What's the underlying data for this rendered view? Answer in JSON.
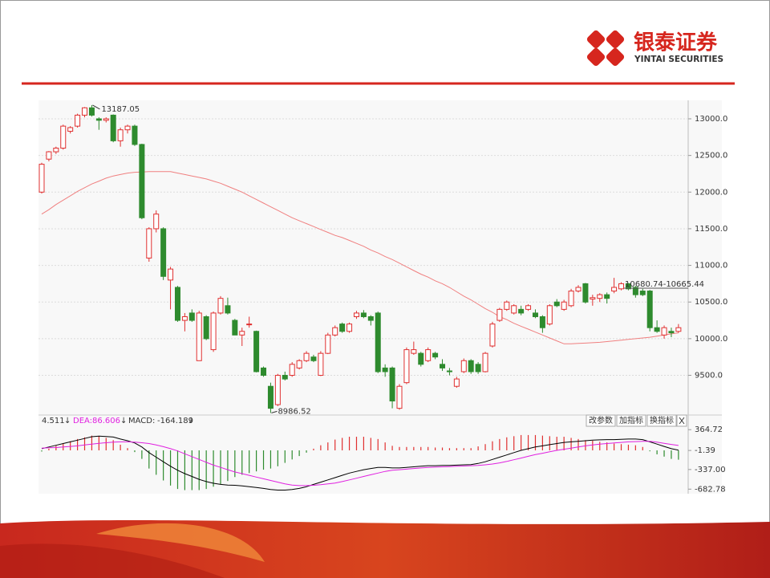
{
  "logo": {
    "name": "银泰证券",
    "subtitle": "YINTAI SECURITIES"
  },
  "toolbar": {
    "buttons": [
      "改参数",
      "加指标",
      "换指标"
    ]
  },
  "chart_data": [
    {
      "type": "candlestick",
      "color_up": "#e03030",
      "color_down": "#2e8b2e",
      "open": [
        12000,
        12450,
        12550,
        12600,
        12830,
        12900,
        13050,
        13150,
        13000,
        12980,
        13050,
        12700,
        12850,
        12900,
        12650,
        11100,
        11500,
        11500,
        10800,
        10700,
        10250,
        10350,
        9700,
        10300,
        9850,
        10350,
        10450,
        10250,
        10050,
        10190,
        10100,
        9600,
        9350,
        9100,
        9500,
        9500,
        9600,
        9700,
        9750,
        9500,
        9800,
        10050,
        10200,
        10100,
        10300,
        10350,
        10300,
        10350,
        9600,
        9600,
        9050,
        9400,
        9800,
        9800,
        9700,
        9800,
        9650,
        9560,
        9350,
        9550,
        9700,
        9650,
        9550,
        9900,
        10250,
        10400,
        10350,
        10400,
        10400,
        10350,
        10300,
        10200,
        10500,
        10400,
        10450,
        10650,
        10750,
        10540,
        10550,
        10600,
        10650,
        10680,
        10750,
        10700,
        10650,
        10650,
        10150,
        10050,
        10100,
        10100
      ],
      "high": [
        12400,
        12560,
        12620,
        12920,
        12900,
        13070,
        13160,
        13187.05,
        13020,
        13020,
        13060,
        12880,
        12920,
        12920,
        12660,
        11520,
        11750,
        11520,
        10980,
        10720,
        10350,
        10400,
        10380,
        10320,
        10370,
        10580,
        10560,
        10270,
        10150,
        10300,
        10110,
        9620,
        9400,
        9520,
        9550,
        9680,
        9720,
        9830,
        9780,
        9830,
        10080,
        10180,
        10220,
        10220,
        10380,
        10390,
        10320,
        10370,
        9650,
        9620,
        9380,
        9880,
        9960,
        9820,
        9880,
        9820,
        9720,
        9600,
        9480,
        9730,
        9720,
        9680,
        9820,
        10230,
        10420,
        10520,
        10470,
        10450,
        10470,
        10400,
        10320,
        10470,
        10540,
        10530,
        10680,
        10730,
        10760,
        10600,
        10620,
        10630,
        10830,
        10770,
        10760,
        10720,
        10680,
        10665,
        10250,
        10180,
        10150,
        10200
      ],
      "low": [
        11980,
        12420,
        12520,
        12580,
        12800,
        12880,
        13020,
        13030,
        12850,
        12950,
        12680,
        12620,
        12800,
        12630,
        11630,
        11050,
        11450,
        10800,
        10400,
        10230,
        10100,
        10230,
        9700,
        9980,
        9820,
        10330,
        10330,
        10050,
        9900,
        10150,
        9540,
        9480,
        8986.52,
        9080,
        9430,
        9480,
        9580,
        9680,
        9680,
        9490,
        9790,
        10030,
        10080,
        10080,
        10270,
        10280,
        10180,
        9530,
        9480,
        9050,
        9030,
        9380,
        9780,
        9620,
        9680,
        9720,
        9560,
        9500,
        9330,
        9530,
        9520,
        9520,
        9540,
        9880,
        10230,
        10380,
        10330,
        10320,
        10380,
        10280,
        10080,
        10180,
        10430,
        10380,
        10430,
        10630,
        10480,
        10450,
        10500,
        10480,
        10620,
        10660,
        10660,
        10560,
        10580,
        10100,
        10080,
        10000,
        10020,
        10080
      ],
      "close": [
        12380,
        12550,
        12600,
        12900,
        12880,
        13050,
        13150,
        13050,
        12980,
        13000,
        12700,
        12850,
        12900,
        12650,
        11650,
        11500,
        11700,
        10850,
        10950,
        10250,
        10300,
        10250,
        10350,
        10000,
        10350,
        10550,
        10350,
        10050,
        10100,
        10200,
        9550,
        9500,
        9050,
        9500,
        9450,
        9650,
        9700,
        9800,
        9700,
        9800,
        10050,
        10150,
        10100,
        10200,
        10350,
        10300,
        10250,
        9550,
        9550,
        9150,
        9350,
        9850,
        9850,
        9650,
        9850,
        9750,
        9600,
        9550,
        9450,
        9700,
        9550,
        9550,
        9800,
        10200,
        10400,
        10500,
        10450,
        10350,
        10450,
        10300,
        10150,
        10450,
        10450,
        10500,
        10650,
        10700,
        10500,
        10560,
        10600,
        10550,
        10700,
        10750,
        10680,
        10600,
        10600,
        10150,
        10100,
        10150,
        10080,
        10150
      ],
      "lines": [
        {
          "color": "#f08080",
          "values": [
            11700,
            11760,
            11830,
            11890,
            11950,
            12010,
            12060,
            12110,
            12150,
            12190,
            12220,
            12240,
            12260,
            12270,
            12275,
            12280,
            12280,
            12280,
            12280,
            12260,
            12240,
            12220,
            12200,
            12180,
            12150,
            12120,
            12080,
            12040,
            12000,
            11950,
            11900,
            11850,
            11800,
            11750,
            11700,
            11650,
            11610,
            11570,
            11530,
            11490,
            11450,
            11410,
            11380,
            11340,
            11300,
            11260,
            11210,
            11170,
            11120,
            11080,
            11030,
            10980,
            10930,
            10880,
            10840,
            10790,
            10750,
            10700,
            10640,
            10580,
            10530,
            10470,
            10410,
            10360,
            10300,
            10260,
            10210,
            10170,
            10130,
            10090,
            10050,
            10010,
            9970,
            9930,
            9930,
            9935,
            9940,
            9945,
            9950,
            9960,
            9970,
            9980,
            9990,
            10000,
            10010,
            10020,
            10035,
            10050,
            10065,
            10080
          ]
        }
      ],
      "ylim": [
        8980,
        13230
      ],
      "yticks": [
        {
          "value": 9500,
          "label": "9500.0"
        },
        {
          "value": 10000,
          "label": "10000.0"
        },
        {
          "value": 10500,
          "label": "10500.0"
        },
        {
          "value": 11000,
          "label": "11000.0"
        },
        {
          "value": 11500,
          "label": "11500.0"
        },
        {
          "value": 12000,
          "label": "12000.0"
        },
        {
          "value": 12500,
          "label": "12500.0"
        },
        {
          "value": 13000,
          "label": "13000.0"
        }
      ],
      "grid": true,
      "annotations": [
        "10680.74-10665.44"
      ]
    },
    {
      "type": "macd",
      "series": [
        {
          "type": "line",
          "color": "#000000",
          "values": [
            30,
            60,
            90,
            120,
            150,
            180,
            210,
            240,
            250,
            245,
            235,
            200,
            170,
            130,
            60,
            -40,
            -120,
            -200,
            -280,
            -350,
            -410,
            -460,
            -510,
            -550,
            -580,
            -600,
            -610,
            -615,
            -625,
            -640,
            -655,
            -670,
            -690,
            -700,
            -700,
            -690,
            -670,
            -640,
            -600,
            -560,
            -520,
            -480,
            -440,
            -400,
            -370,
            -340,
            -320,
            -300,
            -300,
            -310,
            -310,
            -300,
            -290,
            -280,
            -270,
            -270,
            -265,
            -265,
            -260,
            -255,
            -250,
            -230,
            -200,
            -160,
            -120,
            -80,
            -40,
            0,
            30,
            60,
            80,
            100,
            120,
            140,
            150,
            160,
            170,
            180,
            185,
            190,
            190,
            195,
            200,
            200,
            190,
            150,
            110,
            70,
            30,
            4.511
          ]
        },
        {
          "type": "line",
          "name": "DEA:",
          "color": "#e020e0",
          "values": [
            40,
            45,
            50,
            60,
            70,
            80,
            95,
            110,
            125,
            135,
            145,
            150,
            150,
            145,
            135,
            120,
            95,
            65,
            30,
            -10,
            -60,
            -110,
            -160,
            -210,
            -260,
            -300,
            -340,
            -380,
            -410,
            -440,
            -470,
            -500,
            -530,
            -560,
            -590,
            -610,
            -620,
            -620,
            -615,
            -605,
            -590,
            -575,
            -550,
            -520,
            -490,
            -460,
            -430,
            -400,
            -370,
            -350,
            -340,
            -330,
            -320,
            -310,
            -300,
            -295,
            -290,
            -285,
            -280,
            -275,
            -270,
            -265,
            -255,
            -240,
            -220,
            -195,
            -165,
            -135,
            -105,
            -75,
            -50,
            -25,
            0,
            20,
            40,
            60,
            80,
            95,
            110,
            120,
            130,
            140,
            150,
            155,
            160,
            158,
            145,
            125,
            105,
            86.606
          ]
        },
        {
          "type": "bar",
          "name": "MACD:",
          "color_up": "#e03030",
          "color_down": "#2e8b2e",
          "values": [
            -20,
            30,
            80,
            120,
            160,
            200,
            230,
            260,
            250,
            220,
            180,
            100,
            40,
            -30,
            -150,
            -320,
            -430,
            -530,
            -620,
            -680,
            -700,
            -700,
            -700,
            -680,
            -640,
            -600,
            -540,
            -470,
            -430,
            -400,
            -370,
            -340,
            -320,
            -280,
            -220,
            -160,
            -100,
            -40,
            30,
            90,
            140,
            190,
            220,
            240,
            240,
            240,
            220,
            200,
            140,
            80,
            60,
            60,
            60,
            60,
            60,
            50,
            50,
            40,
            40,
            40,
            40,
            70,
            110,
            160,
            200,
            230,
            250,
            270,
            270,
            270,
            260,
            250,
            240,
            240,
            220,
            200,
            180,
            170,
            150,
            140,
            120,
            110,
            100,
            90,
            60,
            -16,
            -70,
            -110,
            -150,
            -164.189
          ]
        }
      ],
      "ylim": [
        -721,
        580
      ],
      "yticks": [
        364.72,
        -1.39,
        {
          "value": -337,
          "label": "-337.00"
        },
        -682.78
      ]
    }
  ]
}
